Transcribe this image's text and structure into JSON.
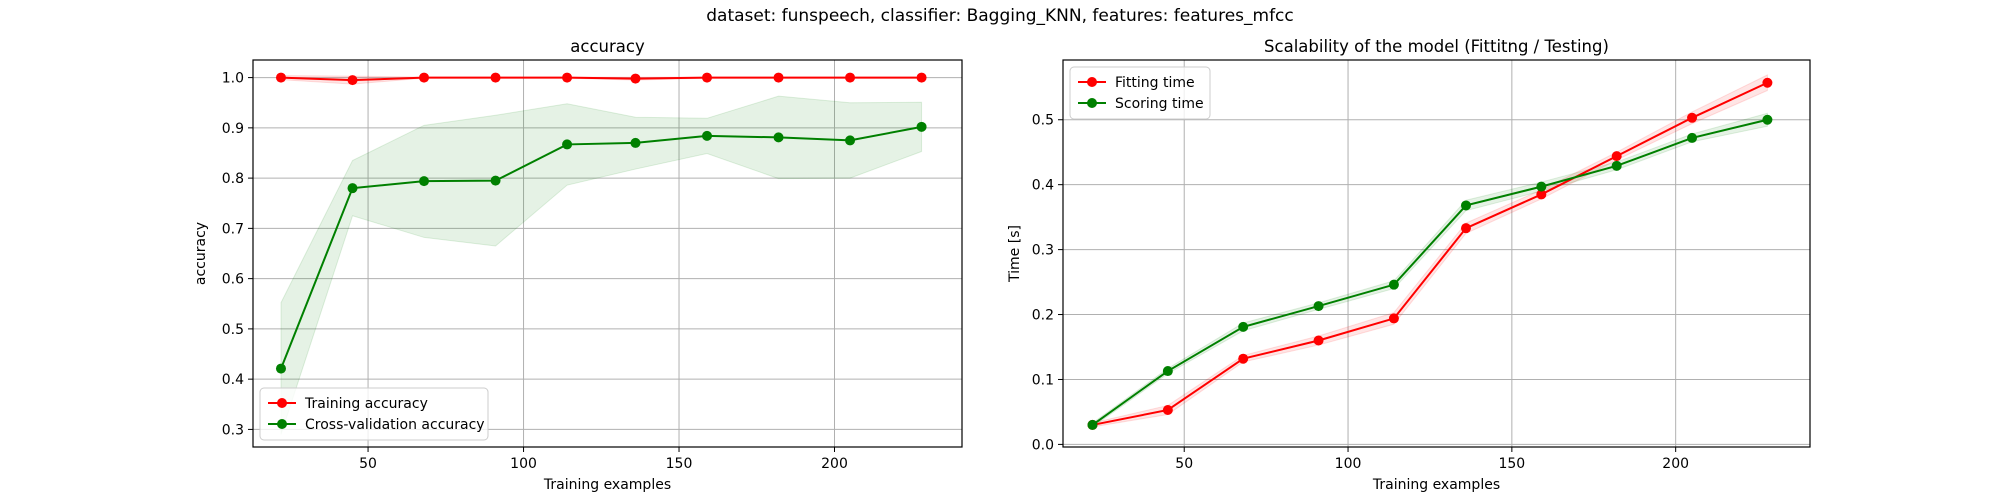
{
  "figure": {
    "suptitle": "dataset: funspeech, classifier: Bagging_KNN, features: features_mfcc"
  },
  "chart_data": [
    {
      "type": "line",
      "title": "accuracy",
      "xlabel": "Training examples",
      "ylabel": "accuracy",
      "xlim": [
        13,
        241
      ],
      "ylim": [
        0.265,
        1.035
      ],
      "xticks": [
        50,
        100,
        150,
        200
      ],
      "yticks": [
        0.3,
        0.4,
        0.5,
        0.6,
        0.7,
        0.8,
        0.9,
        1.0
      ],
      "ytick_labels": [
        "0.3",
        "0.4",
        "0.5",
        "0.6",
        "0.7",
        "0.8",
        "0.9",
        "1.0"
      ],
      "grid": true,
      "legend_position": "lower-left",
      "x": [
        22,
        45,
        68,
        91,
        114,
        136,
        159,
        182,
        205,
        228
      ],
      "series": [
        {
          "name": "Training accuracy",
          "color": "#ff0000",
          "values": [
            1.0,
            0.995,
            1.0,
            1.0,
            1.0,
            0.998,
            1.0,
            1.0,
            1.0,
            1.0
          ],
          "band_lower": [
            0.996,
            0.987,
            0.999,
            0.999,
            0.999,
            0.995,
            0.999,
            0.999,
            0.999,
            0.999
          ],
          "band_upper": [
            1.004,
            1.003,
            1.001,
            1.001,
            1.001,
            1.001,
            1.001,
            1.001,
            1.001,
            1.001
          ]
        },
        {
          "name": "Cross-validation accuracy",
          "color": "#008000",
          "values": [
            0.421,
            0.78,
            0.794,
            0.795,
            0.867,
            0.87,
            0.884,
            0.881,
            0.875,
            0.902
          ],
          "band_lower": [
            0.29,
            0.725,
            0.682,
            0.665,
            0.786,
            0.818,
            0.849,
            0.799,
            0.8,
            0.853
          ],
          "band_upper": [
            0.552,
            0.835,
            0.905,
            0.925,
            0.948,
            0.921,
            0.919,
            0.963,
            0.95,
            0.951
          ]
        }
      ]
    },
    {
      "type": "line",
      "title": "Scalability of the model (Fittitng / Testing)",
      "xlabel": "Training examples",
      "ylabel": "Time [s]",
      "xlim": [
        13,
        241
      ],
      "ylim": [
        -0.004,
        0.592
      ],
      "xticks": [
        50,
        100,
        150,
        200
      ],
      "yticks": [
        0.0,
        0.1,
        0.2,
        0.3,
        0.4,
        0.5
      ],
      "ytick_labels": [
        "0.0",
        "0.1",
        "0.2",
        "0.3",
        "0.4",
        "0.5"
      ],
      "grid": true,
      "legend_position": "upper-left",
      "x": [
        22,
        45,
        68,
        91,
        114,
        136,
        159,
        182,
        205,
        228
      ],
      "series": [
        {
          "name": "Fitting time",
          "color": "#ff0000",
          "values": [
            0.03,
            0.053,
            0.132,
            0.16,
            0.194,
            0.333,
            0.385,
            0.444,
            0.503,
            0.557
          ],
          "band_lower": [
            0.027,
            0.046,
            0.127,
            0.153,
            0.185,
            0.325,
            0.378,
            0.438,
            0.494,
            0.545
          ],
          "band_upper": [
            0.033,
            0.06,
            0.137,
            0.167,
            0.203,
            0.341,
            0.392,
            0.45,
            0.512,
            0.569
          ]
        },
        {
          "name": "Scoring time",
          "color": "#008000",
          "values": [
            0.03,
            0.113,
            0.181,
            0.213,
            0.246,
            0.368,
            0.397,
            0.429,
            0.472,
            0.5
          ],
          "band_lower": [
            0.027,
            0.109,
            0.175,
            0.208,
            0.24,
            0.36,
            0.39,
            0.423,
            0.466,
            0.49
          ],
          "band_upper": [
            0.033,
            0.117,
            0.187,
            0.218,
            0.252,
            0.376,
            0.404,
            0.435,
            0.478,
            0.51
          ]
        }
      ]
    }
  ]
}
